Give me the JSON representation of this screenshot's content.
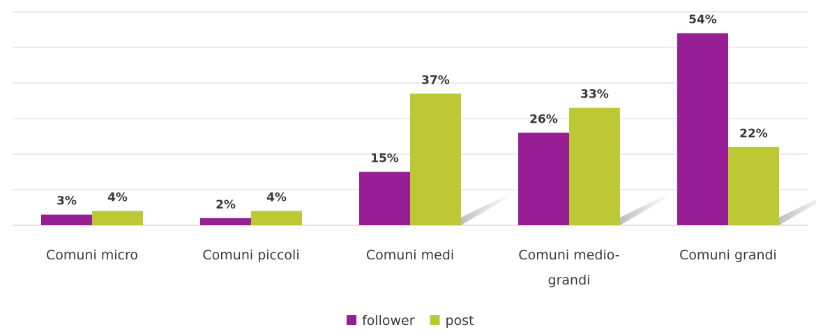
{
  "chart_data": {
    "type": "bar",
    "categories": [
      [
        "Comuni micro"
      ],
      [
        "Comuni piccoli"
      ],
      [
        "Comuni medi"
      ],
      [
        "Comuni medio-",
        "grandi"
      ],
      [
        "Comuni grandi"
      ]
    ],
    "series": [
      {
        "name": "follower",
        "color": "#981e96",
        "values": [
          3,
          2,
          15,
          26,
          54
        ],
        "labels": [
          "3%",
          "2%",
          "15%",
          "26%",
          "54%"
        ]
      },
      {
        "name": "post",
        "color": "#bcc934",
        "values": [
          4,
          4,
          37,
          33,
          22
        ],
        "labels": [
          "4%",
          "4%",
          "37%",
          "33%",
          "22%"
        ]
      }
    ],
    "ylim": [
      0,
      60
    ],
    "grid": true,
    "legend": "bottom-center",
    "title": "",
    "xlabel": "",
    "ylabel": ""
  }
}
